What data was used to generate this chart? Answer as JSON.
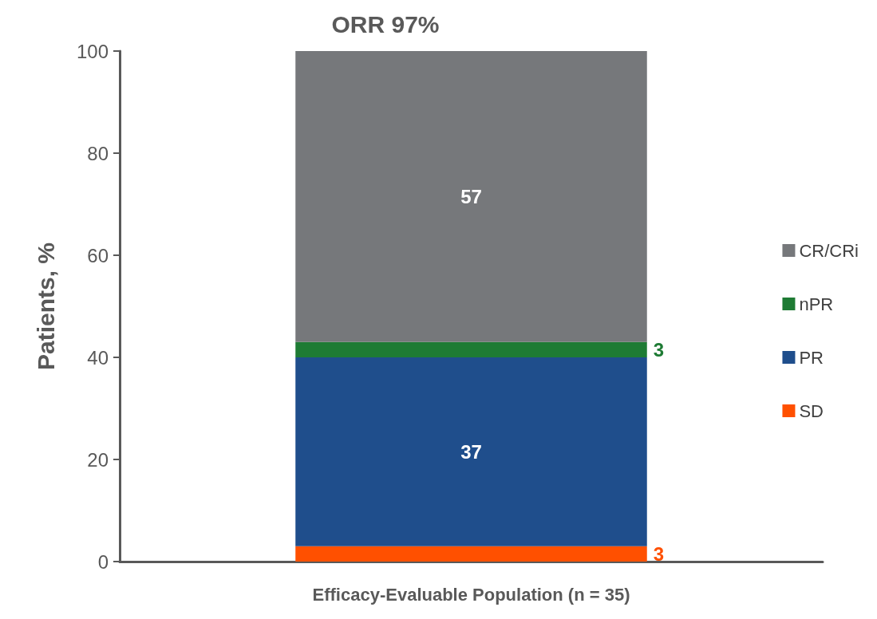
{
  "chart_data": {
    "type": "bar",
    "title": "ORR 97%",
    "ylabel": "Patients, %",
    "categories": [
      "Efficacy-Evaluable Population (n = 35)"
    ],
    "stacked": true,
    "data_labels": true,
    "legend": "right",
    "grid": false,
    "ylim": [
      0,
      100
    ],
    "yticks": [
      0,
      20,
      40,
      60,
      80,
      100
    ],
    "series": [
      {
        "name": "SD",
        "color": "#ff5000",
        "values": [
          3
        ]
      },
      {
        "name": "PR",
        "color": "#1f4e8c",
        "values": [
          37
        ]
      },
      {
        "name": "nPR",
        "color": "#1e7b34",
        "values": [
          3
        ]
      },
      {
        "name": "CR/CRi",
        "color": "#76787b",
        "values": [
          57
        ]
      }
    ]
  }
}
